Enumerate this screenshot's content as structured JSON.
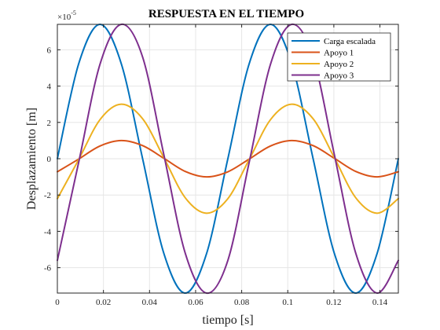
{
  "chart_data": {
    "type": "line",
    "title": "RESPUESTA EN EL TIEMPO",
    "xlabel": "tiempo [s]",
    "ylabel": "Desplazamiento [m]",
    "y_exponent_label": "×10",
    "y_exponent_power": "-5",
    "xlim": [
      0,
      0.148
    ],
    "ylim": [
      -7.4,
      7.4
    ],
    "x_ticks": [
      0,
      0.02,
      0.04,
      0.06,
      0.08,
      0.1,
      0.12,
      0.14
    ],
    "x_tick_labels": [
      "0",
      "0.02",
      "0.04",
      "0.06",
      "0.08",
      "0.1",
      "0.12",
      "0.14"
    ],
    "y_ticks": [
      -6,
      -4,
      -2,
      0,
      2,
      4,
      6
    ],
    "y_tick_labels": [
      "-6",
      "-4",
      "-2",
      "0",
      "2",
      "4",
      "6"
    ],
    "grid": true,
    "legend_position": "top-right",
    "series": [
      {
        "name": "Carga escalada",
        "color": "#0072BD",
        "x": [
          0,
          0.00925,
          0.0185,
          0.02775,
          0.037,
          0.04625,
          0.0555,
          0.06475,
          0.074,
          0.08325,
          0.0925,
          0.10175,
          0.111,
          0.12025,
          0.1295,
          0.13875,
          0.148
        ],
        "y": [
          0,
          5.23,
          7.4,
          5.23,
          0,
          -5.23,
          -7.4,
          -5.23,
          0,
          5.23,
          7.4,
          5.23,
          0,
          -5.23,
          -7.4,
          -5.23,
          0
        ]
      },
      {
        "name": "Apoyo 1",
        "color": "#D95319",
        "x": [
          0,
          0.00925,
          0.0185,
          0.02775,
          0.037,
          0.04625,
          0.0555,
          0.06475,
          0.074,
          0.08325,
          0.0925,
          0.10175,
          0.111,
          0.12025,
          0.1295,
          0.13875,
          0.148
        ],
        "y": [
          -0.72,
          -0.02,
          0.7,
          1.0,
          0.72,
          0.02,
          -0.7,
          -1.0,
          -0.72,
          -0.02,
          0.7,
          1.0,
          0.72,
          0.02,
          -0.7,
          -1.0,
          -0.72
        ],
        "note_style": "sinusoid"
      },
      {
        "name": "Apoyo 2",
        "color": "#EDB120",
        "x": [
          0,
          0.00925,
          0.0185,
          0.02775,
          0.037,
          0.04625,
          0.0555,
          0.06475,
          0.074,
          0.08325,
          0.0925,
          0.10175,
          0.111,
          0.12025,
          0.1295,
          0.13875,
          0.148
        ],
        "y": [
          -2.2,
          -0.05,
          2.15,
          3.0,
          2.2,
          0.05,
          -2.15,
          -3.0,
          -2.2,
          -0.05,
          2.15,
          3.0,
          2.2,
          0.05,
          -2.15,
          -3.0,
          -2.2
        ]
      },
      {
        "name": "Apoyo 3",
        "color": "#7E2F8E",
        "x": [
          0,
          0.00925,
          0.0185,
          0.02775,
          0.037,
          0.04625,
          0.0555,
          0.06475,
          0.074,
          0.08325,
          0.0925,
          0.10175,
          0.111,
          0.12025,
          0.1295,
          0.13875,
          0.148
        ],
        "y": [
          -5.6,
          -0.2,
          5.2,
          7.4,
          5.6,
          0.2,
          -5.2,
          -7.4,
          -5.6,
          -0.2,
          5.2,
          7.4,
          5.6,
          0.2,
          -5.2,
          -7.4,
          -5.6
        ]
      }
    ]
  }
}
